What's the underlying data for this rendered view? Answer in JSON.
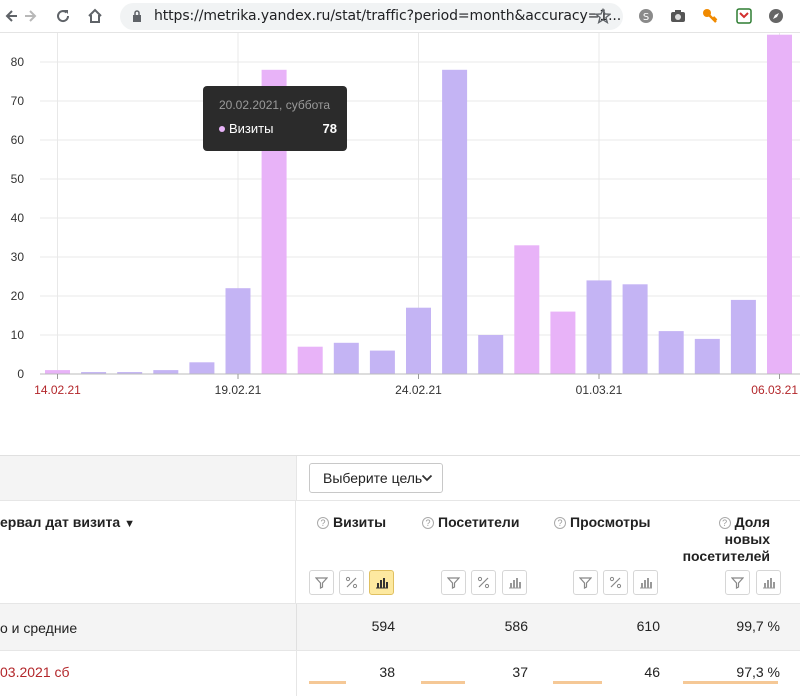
{
  "browser": {
    "url": "https://metrika.yandex.ru/stat/traffic?period=month&accuracy=1..."
  },
  "chart_data": {
    "type": "bar",
    "categories": [
      "14.02.21",
      "15.02.21",
      "16.02.21",
      "17.02.21",
      "18.02.21",
      "19.02.21",
      "20.02.21",
      "21.02.21",
      "22.02.21",
      "23.02.21",
      "24.02.21",
      "25.02.21",
      "26.02.21",
      "27.02.21",
      "28.02.21",
      "01.03.21",
      "02.03.21",
      "03.03.21",
      "04.03.21",
      "05.03.21",
      "06.03.21"
    ],
    "values": [
      1,
      0.5,
      0.5,
      1,
      3,
      22,
      78,
      7,
      8,
      6,
      17,
      78,
      10,
      33,
      16,
      24,
      23,
      11,
      9,
      19,
      87
    ],
    "weekend": [
      true,
      false,
      false,
      false,
      false,
      false,
      true,
      true,
      false,
      false,
      false,
      false,
      false,
      true,
      true,
      false,
      false,
      false,
      false,
      false,
      true
    ],
    "ylim": [
      0,
      90
    ],
    "yticks": [
      0,
      10,
      20,
      30,
      40,
      50,
      60,
      70,
      80
    ],
    "xtick_labels": [
      {
        "index": 0,
        "label": "14.02.21",
        "weekend": true
      },
      {
        "index": 5,
        "label": "19.02.21",
        "weekend": false
      },
      {
        "index": 10,
        "label": "24.02.21",
        "weekend": false
      },
      {
        "index": 15,
        "label": "01.03.21",
        "weekend": false
      },
      {
        "index": 20,
        "label": "06.03.21",
        "weekend": true
      }
    ],
    "colors": {
      "weekday": "#c4b4f4",
      "weekend": "#e8b3f8",
      "weekend_label": "#b3272b",
      "grid": "#e8e8e8"
    },
    "tooltip": {
      "date": "20.02.2021, суббота",
      "series": "Визиты",
      "value": "78"
    }
  },
  "table": {
    "goal_button": "Выберите цель",
    "dimension_header": "ервал дат визита",
    "dimension_sort": "▼",
    "columns": [
      {
        "lines": [
          "Визиты"
        ]
      },
      {
        "lines": [
          "Посетители"
        ]
      },
      {
        "lines": [
          "Просмотры"
        ]
      },
      {
        "lines": [
          "Доля",
          "новых",
          "посетителей"
        ]
      }
    ],
    "totals": {
      "label": "о и средние",
      "values": [
        "594",
        "586",
        "610",
        "99,7 %"
      ]
    },
    "rows": [
      {
        "label": "03.2021 сб",
        "values": [
          "38",
          "37",
          "46",
          "97,3 %"
        ],
        "weekend": true,
        "bars": [
          0.43,
          0.41,
          0.46,
          0.97
        ]
      }
    ]
  }
}
